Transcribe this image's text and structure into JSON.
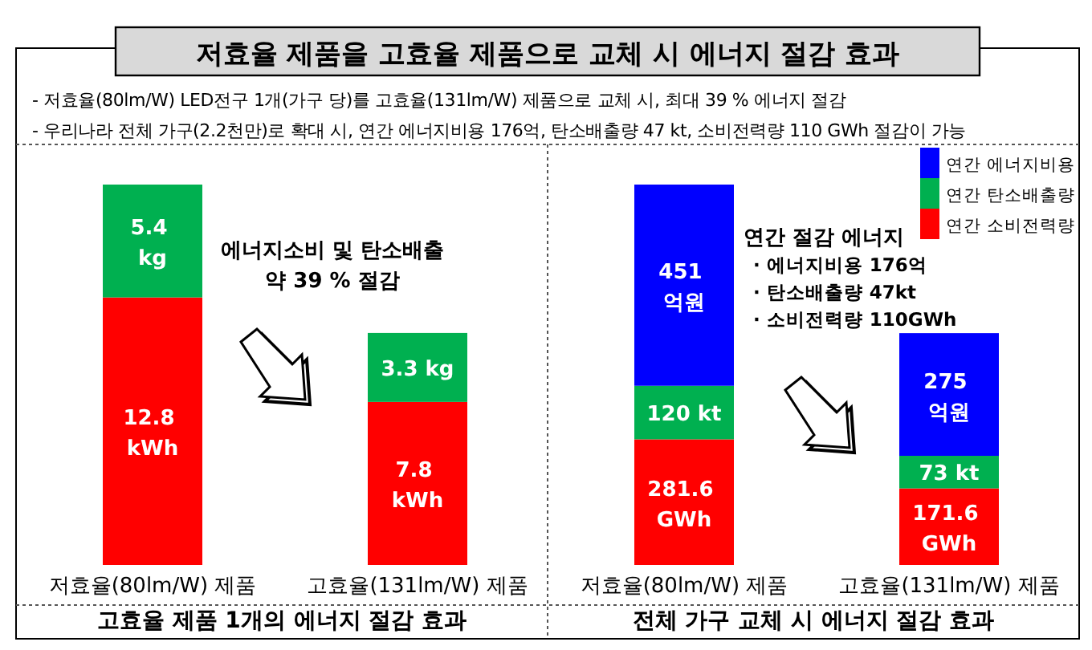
{
  "chart_data": [
    {
      "type": "bar",
      "stacked": true,
      "title": "저효율 제품을 고효율 제품으로 교체 시 에너지 절감 효과",
      "xlabel": "고효율 제품 1개의 에너지 절감 효과",
      "categories": [
        "저효율(80lm/W) 제품",
        "고효율(131lm/W) 제품"
      ],
      "series": [
        {
          "color": "#ff0000",
          "values": [
            12.8,
            7.8
          ],
          "value_labels": [
            "12.8 kWh",
            "7.8 kWh"
          ]
        },
        {
          "color": "#00b050",
          "values": [
            5.4,
            3.3
          ],
          "value_labels": [
            "5.4 kg",
            "3.3 kg"
          ]
        }
      ],
      "annotations": [
        "- 저효율(80lm/W) LED전구 1개(가구 당)를 고효율(131lm/W) 제품으로 교체 시, 최대 39 % 에너지 절감",
        "- 우리나라 전체 가구(2.2천만)로 확대 시, 연간 에너지비용 176억, 탄소배출량 47 kt, 소비전력량 110 GWh 절감이 가능",
        "에너지소비 및 탄소배출",
        "약 39 % 절감"
      ]
    },
    {
      "type": "bar",
      "stacked": true,
      "xlabel": "전체 가구 교체 시 에너지 절감 효과",
      "categories": [
        "저효율(80lm/W) 제품",
        "고효율(131lm/W) 제품"
      ],
      "legend": "top right",
      "series": [
        {
          "name": "연간 소비전력량",
          "color": "#ff0000",
          "values": [
            281.6,
            171.6
          ],
          "value_labels": [
            "281.6 GWh",
            "171.6 GWh"
          ]
        },
        {
          "name": "연간 탄소배출량",
          "color": "#00b050",
          "values": [
            120,
            73
          ],
          "value_labels": [
            "120 kt",
            "73 kt"
          ]
        },
        {
          "name": "연간 에너지비용",
          "color": "#0000ff",
          "values": [
            451,
            275
          ],
          "value_labels": [
            "451 억원",
            "275 억원"
          ]
        }
      ],
      "annotations": [
        "연간 절감 에너지",
        "· 에너지비용 176억",
        "· 탄소배출량 47kt",
        "· 소비전력량 110GWh"
      ]
    }
  ]
}
